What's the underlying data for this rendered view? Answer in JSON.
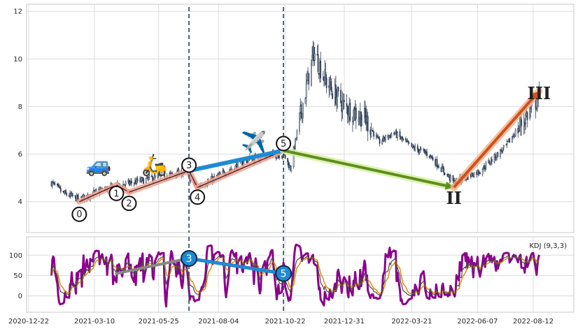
{
  "chart_data": [
    {
      "type": "candlestick",
      "panel": "price",
      "x_start": "2021-01-18",
      "x_end": "2022-08-19",
      "ylim": [
        2.7,
        12.3
      ],
      "yticks": [
        4,
        6,
        8,
        10,
        12
      ],
      "grid": true,
      "series_anchor_prices": [
        {
          "date": "2021-01-18",
          "value": 4.8
        },
        {
          "date": "2021-02-01",
          "value": 4.35
        },
        {
          "date": "2021-02-20",
          "value": 4.1
        },
        {
          "date": "2021-03-15",
          "value": 4.45
        },
        {
          "date": "2021-04-10",
          "value": 4.7
        },
        {
          "date": "2021-05-20",
          "value": 5.0
        },
        {
          "date": "2021-06-25",
          "value": 5.25
        },
        {
          "date": "2021-07-10",
          "value": 4.6
        },
        {
          "date": "2021-08-10",
          "value": 5.2
        },
        {
          "date": "2021-09-10",
          "value": 5.8
        },
        {
          "date": "2021-10-20",
          "value": 6.0
        },
        {
          "date": "2021-10-28",
          "value": 5.4
        },
        {
          "date": "2021-11-10",
          "value": 7.8
        },
        {
          "date": "2021-11-25",
          "value": 10.3
        },
        {
          "date": "2021-12-10",
          "value": 9.0
        },
        {
          "date": "2021-12-31",
          "value": 8.0
        },
        {
          "date": "2022-01-25",
          "value": 7.5
        },
        {
          "date": "2022-02-10",
          "value": 6.5
        },
        {
          "date": "2022-02-28",
          "value": 6.9
        },
        {
          "date": "2022-03-20",
          "value": 6.3
        },
        {
          "date": "2022-04-10",
          "value": 6.0
        },
        {
          "date": "2022-05-10",
          "value": 4.8
        },
        {
          "date": "2022-06-10",
          "value": 5.3
        },
        {
          "date": "2022-07-10",
          "value": 6.3
        },
        {
          "date": "2022-08-19",
          "value": 8.4
        }
      ],
      "wave_points": [
        {
          "label": "0",
          "date": "2021-02-20",
          "value": 4.0
        },
        {
          "label": "1",
          "date": "2021-04-05",
          "value": 4.7
        },
        {
          "label": "2",
          "date": "2021-04-20",
          "value": 4.4
        },
        {
          "label": "3",
          "date": "2021-06-30",
          "value": 5.3
        },
        {
          "label": "4",
          "date": "2021-07-10",
          "value": 4.6
        },
        {
          "label": "5",
          "date": "2021-10-20",
          "value": 6.15
        }
      ],
      "segments": [
        {
          "from": [
            "2021-02-20",
            4.0
          ],
          "to": [
            "2021-04-05",
            4.7
          ],
          "color": "#f0a090"
        },
        {
          "from": [
            "2021-04-05",
            4.7
          ],
          "to": [
            "2021-04-20",
            4.4
          ],
          "color": "#f0a090"
        },
        {
          "from": [
            "2021-04-20",
            4.4
          ],
          "to": [
            "2021-06-30",
            5.3
          ],
          "color": "#f0a090"
        },
        {
          "from": [
            "2021-06-30",
            5.3
          ],
          "to": [
            "2021-07-10",
            4.6
          ],
          "color": "#f0a090"
        },
        {
          "from": [
            "2021-07-10",
            4.6
          ],
          "to": [
            "2021-10-20",
            6.15
          ],
          "color": "#f0a090"
        },
        {
          "from": [
            "2021-06-30",
            5.3
          ],
          "to": [
            "2021-10-20",
            6.15
          ],
          "color": "#1f8ad4"
        }
      ],
      "arrows": [
        {
          "from": [
            "2021-10-20",
            6.15
          ],
          "to": [
            "2022-05-10",
            4.6
          ],
          "color": "#5e8f1e",
          "glow": "#d6f0a0"
        },
        {
          "from": [
            "2022-05-10",
            4.6
          ],
          "to": [
            "2022-08-19",
            8.65
          ],
          "color": "#d1501a",
          "glow": "#f3b08a"
        }
      ],
      "roman_labels": [
        {
          "label": "II",
          "date": "2022-05-10",
          "value": 4.2
        },
        {
          "label": "III",
          "date": "2022-08-19",
          "value": 8.6
        }
      ],
      "vlines": [
        "2021-06-30",
        "2021-10-20"
      ],
      "icons": [
        {
          "name": "car-icon",
          "glyph": "🚙",
          "date": "2021-03-15",
          "value": 5.55
        },
        {
          "name": "scooter-icon",
          "glyph": "🛵",
          "date": "2021-05-20",
          "value": 5.55
        },
        {
          "name": "airplane-icon",
          "glyph": "✈️",
          "date": "2021-09-15",
          "value": 6.5
        }
      ]
    },
    {
      "type": "line",
      "panel": "indicator",
      "title": "KDJ (9,3,3)",
      "ylim": [
        -40,
        145
      ],
      "yticks": [
        0,
        50,
        100
      ],
      "series": [
        {
          "key": "J",
          "color": "#8b008b",
          "width": 3
        },
        {
          "key": "D",
          "color": "#e8870f",
          "width": 1.5
        },
        {
          "key": "K",
          "color": "#4a4a4a",
          "width": 1.2
        }
      ],
      "badges": [
        {
          "label": "3",
          "date": "2021-06-30",
          "value": 92
        },
        {
          "label": "5",
          "date": "2021-10-20",
          "value": 55
        }
      ],
      "badge_link": {
        "from": [
          "2021-06-30",
          92
        ],
        "to": [
          "2021-10-20",
          55
        ],
        "color": "#1f8ad4"
      },
      "grey_link": {
        "from": [
          "2021-04-05",
          55
        ],
        "to": [
          "2021-06-20",
          88
        ],
        "color": "#888888"
      }
    }
  ],
  "x_axis": {
    "ticks": [
      {
        "label": "2020-12-22",
        "date": "2020-12-22"
      },
      {
        "label": "2021-03-10",
        "date": "2021-03-10"
      },
      {
        "label": "2021-05-25",
        "date": "2021-05-25"
      },
      {
        "label": "2021-08-04",
        "date": "2021-08-04"
      },
      {
        "label": "2021-10-22",
        "date": "2021-10-22"
      },
      {
        "label": "2021-12-31",
        "date": "2021-12-31"
      },
      {
        "label": "2022-03-21",
        "date": "2022-03-21"
      },
      {
        "label": "2022-06-07",
        "date": "2022-06-07"
      },
      {
        "label": "2022-08-12",
        "date": "2022-08-12"
      }
    ]
  }
}
